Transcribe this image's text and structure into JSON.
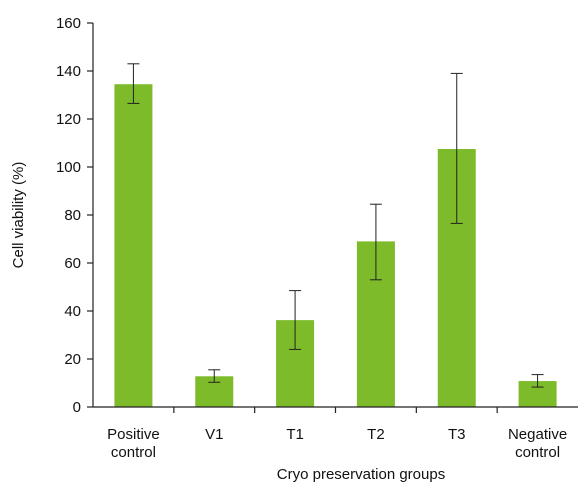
{
  "chart_data": {
    "type": "bar",
    "title": "",
    "xlabel": "Cryo preservation groups",
    "ylabel": "Cell viability (%)",
    "ylim": [
      0,
      160
    ],
    "yticks": [
      0,
      20,
      40,
      60,
      80,
      100,
      120,
      140,
      160
    ],
    "grid": false,
    "legend": "none",
    "bar_color": "#7dbb2b",
    "categories": [
      [
        "Positive",
        "control"
      ],
      [
        "V1"
      ],
      [
        "T1"
      ],
      [
        "T2"
      ],
      [
        "T3"
      ],
      [
        "Negative",
        "control"
      ]
    ],
    "values": [
      134.5,
      12.8,
      36.2,
      69.0,
      107.5,
      10.8
    ],
    "error_low": [
      126.5,
      10.3,
      24.0,
      53.0,
      76.5,
      8.3
    ],
    "error_high": [
      143.0,
      15.5,
      48.5,
      84.5,
      139.0,
      13.5
    ]
  }
}
